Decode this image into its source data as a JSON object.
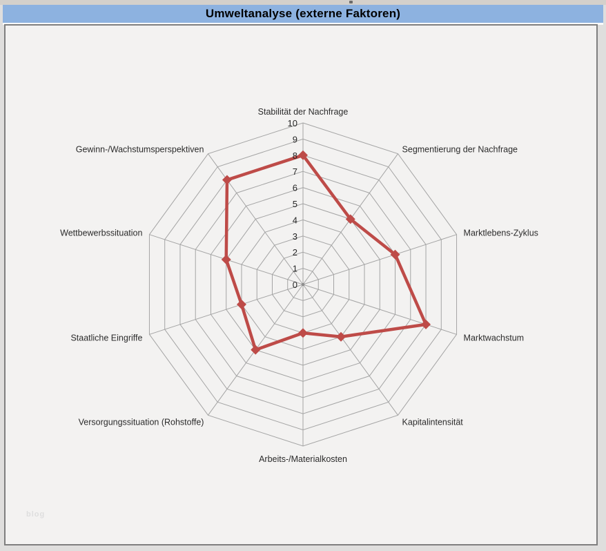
{
  "window": {
    "title": "Umweltanalyse (externe Faktoren)"
  },
  "watermark": "blog",
  "colors": {
    "titlebar_bg": "#8DB2E0",
    "chart_bg": "#F3F2F1",
    "grid": "#A4A4A4",
    "series": "#BE4B48",
    "tick_text": "#262626",
    "label_text": "#2B2B2B"
  },
  "chart_data": {
    "type": "radar",
    "title": "Umweltanalyse (externe Faktoren)",
    "categories": [
      "Stabilität der Nachfrage",
      "Segmentierung der Nachfrage",
      "Marktlebens-Zyklus",
      "Marktwachstum",
      "Kapitalintensität",
      "Arbeits-/Materialkosten",
      "Versorgungssituation (Rohstoffe)",
      "Staatliche Eingriffe",
      "Wettbewerbssituation",
      "Gewinn-/Wachstumsperspektiven"
    ],
    "values": [
      8,
      5,
      6,
      8,
      4,
      3,
      5,
      4,
      5,
      8
    ],
    "axis": {
      "min": 0,
      "max": 10,
      "step": 1
    },
    "grid": true,
    "legend": "none"
  }
}
